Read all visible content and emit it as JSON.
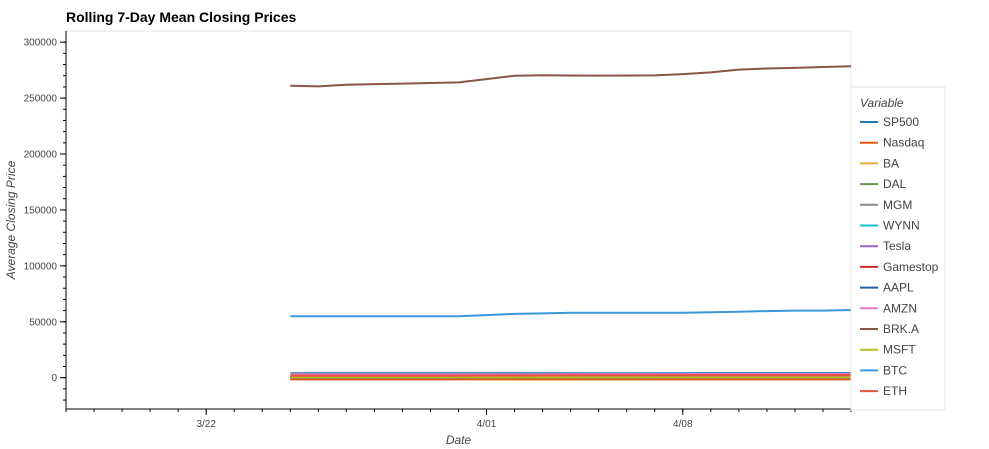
{
  "chart_data": {
    "type": "line",
    "title": "Rolling 7-Day Mean Closing Prices",
    "xlabel": "Date",
    "ylabel": "Average Closing Price",
    "x_ticks": [
      {
        "date": "2021-03-22",
        "label": "3/22"
      },
      {
        "date": "2021-04-01",
        "label": "4/01"
      },
      {
        "date": "2021-04-08",
        "label": "4/08"
      }
    ],
    "xlim": [
      "2021-03-17",
      "2021-04-14"
    ],
    "ylim": [
      -28000,
      310000
    ],
    "y_ticks": [
      0,
      50000,
      100000,
      150000,
      200000,
      250000,
      300000
    ],
    "legend_title": "Variable",
    "legend_position": "right",
    "x": [
      "2021-03-25",
      "2021-03-26",
      "2021-03-27",
      "2021-03-28",
      "2021-03-29",
      "2021-03-30",
      "2021-03-31",
      "2021-04-01",
      "2021-04-02",
      "2021-04-03",
      "2021-04-04",
      "2021-04-05",
      "2021-04-06",
      "2021-04-07",
      "2021-04-08",
      "2021-04-09",
      "2021-04-10",
      "2021-04-11",
      "2021-04-12",
      "2021-04-13",
      "2021-04-14"
    ],
    "series": [
      {
        "name": "SP500",
        "color": "#1f77b4",
        "values": [
          3900,
          3910,
          3915,
          3920,
          3930,
          3940,
          3950,
          3960,
          3975,
          3990,
          4000,
          4010,
          4020,
          4035,
          4050,
          4065,
          4080,
          4090,
          4100,
          4110,
          4120
        ]
      },
      {
        "name": "Nasdaq",
        "color": "#e6550d",
        "values": [
          -1500,
          -1500,
          -1500,
          -1500,
          -1500,
          -1500,
          -1500,
          -1500,
          -1500,
          -1500,
          -1500,
          -1500,
          -1500,
          -1500,
          -1500,
          -1500,
          -1500,
          -1500,
          -1500,
          -1500,
          -1500
        ]
      },
      {
        "name": "BA",
        "color": "#e5ae38",
        "values": [
          240,
          240,
          238,
          236,
          235,
          234,
          233,
          232,
          232,
          233,
          234,
          235,
          236,
          237,
          238,
          239,
          240,
          241,
          242,
          243,
          244
        ]
      },
      {
        "name": "DAL",
        "color": "#6d904f",
        "values": [
          48,
          48,
          47,
          47,
          47,
          47,
          47,
          47,
          47,
          47,
          47,
          47,
          47,
          47,
          47,
          47,
          47,
          47,
          47,
          47,
          47
        ]
      },
      {
        "name": "MGM",
        "color": "#8b8b8b",
        "values": [
          38,
          38,
          38,
          38,
          38,
          38,
          38,
          38,
          38,
          38,
          38,
          38,
          38,
          38,
          38,
          38,
          38,
          38,
          38,
          38,
          38
        ]
      },
      {
        "name": "WYNN",
        "color": "#17becf",
        "values": [
          125,
          125,
          125,
          125,
          125,
          125,
          125,
          125,
          125,
          125,
          125,
          125,
          125,
          125,
          125,
          125,
          125,
          125,
          125,
          125,
          125
        ]
      },
      {
        "name": "Tesla",
        "color": "#9467bd",
        "values": [
          650,
          650,
          645,
          640,
          640,
          645,
          650,
          655,
          660,
          665,
          670,
          675,
          680,
          685,
          690,
          695,
          700,
          705,
          710,
          715,
          720
        ]
      },
      {
        "name": "Gamestop",
        "color": "#d62728",
        "values": [
          180,
          180,
          180,
          180,
          180,
          180,
          180,
          180,
          180,
          180,
          180,
          180,
          180,
          180,
          180,
          180,
          180,
          180,
          180,
          180,
          180
        ]
      },
      {
        "name": "AAPL",
        "color": "#1f5fa8",
        "values": [
          121,
          121,
          121,
          121,
          121,
          121,
          121,
          122,
          122,
          123,
          124,
          125,
          126,
          127,
          128,
          129,
          130,
          131,
          131,
          132,
          133
        ]
      },
      {
        "name": "AMZN",
        "color": "#e377c2",
        "values": [
          3100,
          3100,
          3100,
          3100,
          3100,
          3100,
          3100,
          3110,
          3120,
          3140,
          3160,
          3180,
          3200,
          3220,
          3240,
          3260,
          3280,
          3300,
          3320,
          3340,
          3360
        ]
      },
      {
        "name": "BRK.A",
        "color": "#8c564b",
        "values": [
          261000,
          260500,
          262000,
          262500,
          263000,
          263500,
          264000,
          267000,
          270000,
          270500,
          270200,
          270100,
          270200,
          270300,
          271500,
          273000,
          275500,
          276500,
          277000,
          277800,
          278500
        ]
      },
      {
        "name": "MSFT",
        "color": "#bcbd22",
        "values": [
          235,
          235,
          235,
          235,
          235,
          236,
          237,
          238,
          239,
          240,
          241,
          242,
          243,
          244,
          245,
          246,
          247,
          248,
          249,
          250,
          251
        ]
      },
      {
        "name": "BTC",
        "color": "#3a9ad9",
        "values": [
          55000,
          55000,
          55000,
          55000,
          55000,
          55000,
          55000,
          56000,
          57000,
          57500,
          58000,
          58000,
          58000,
          58000,
          58000,
          58500,
          59000,
          59500,
          60000,
          60000,
          60500
        ]
      },
      {
        "name": "ETH",
        "color": "#e8523a",
        "values": [
          1700,
          1700,
          1700,
          1700,
          1700,
          1750,
          1800,
          1850,
          1900,
          1950,
          2000,
          2050,
          2080,
          2100,
          2120,
          2140,
          2160,
          2180,
          2200,
          2250,
          2300
        ]
      }
    ]
  }
}
